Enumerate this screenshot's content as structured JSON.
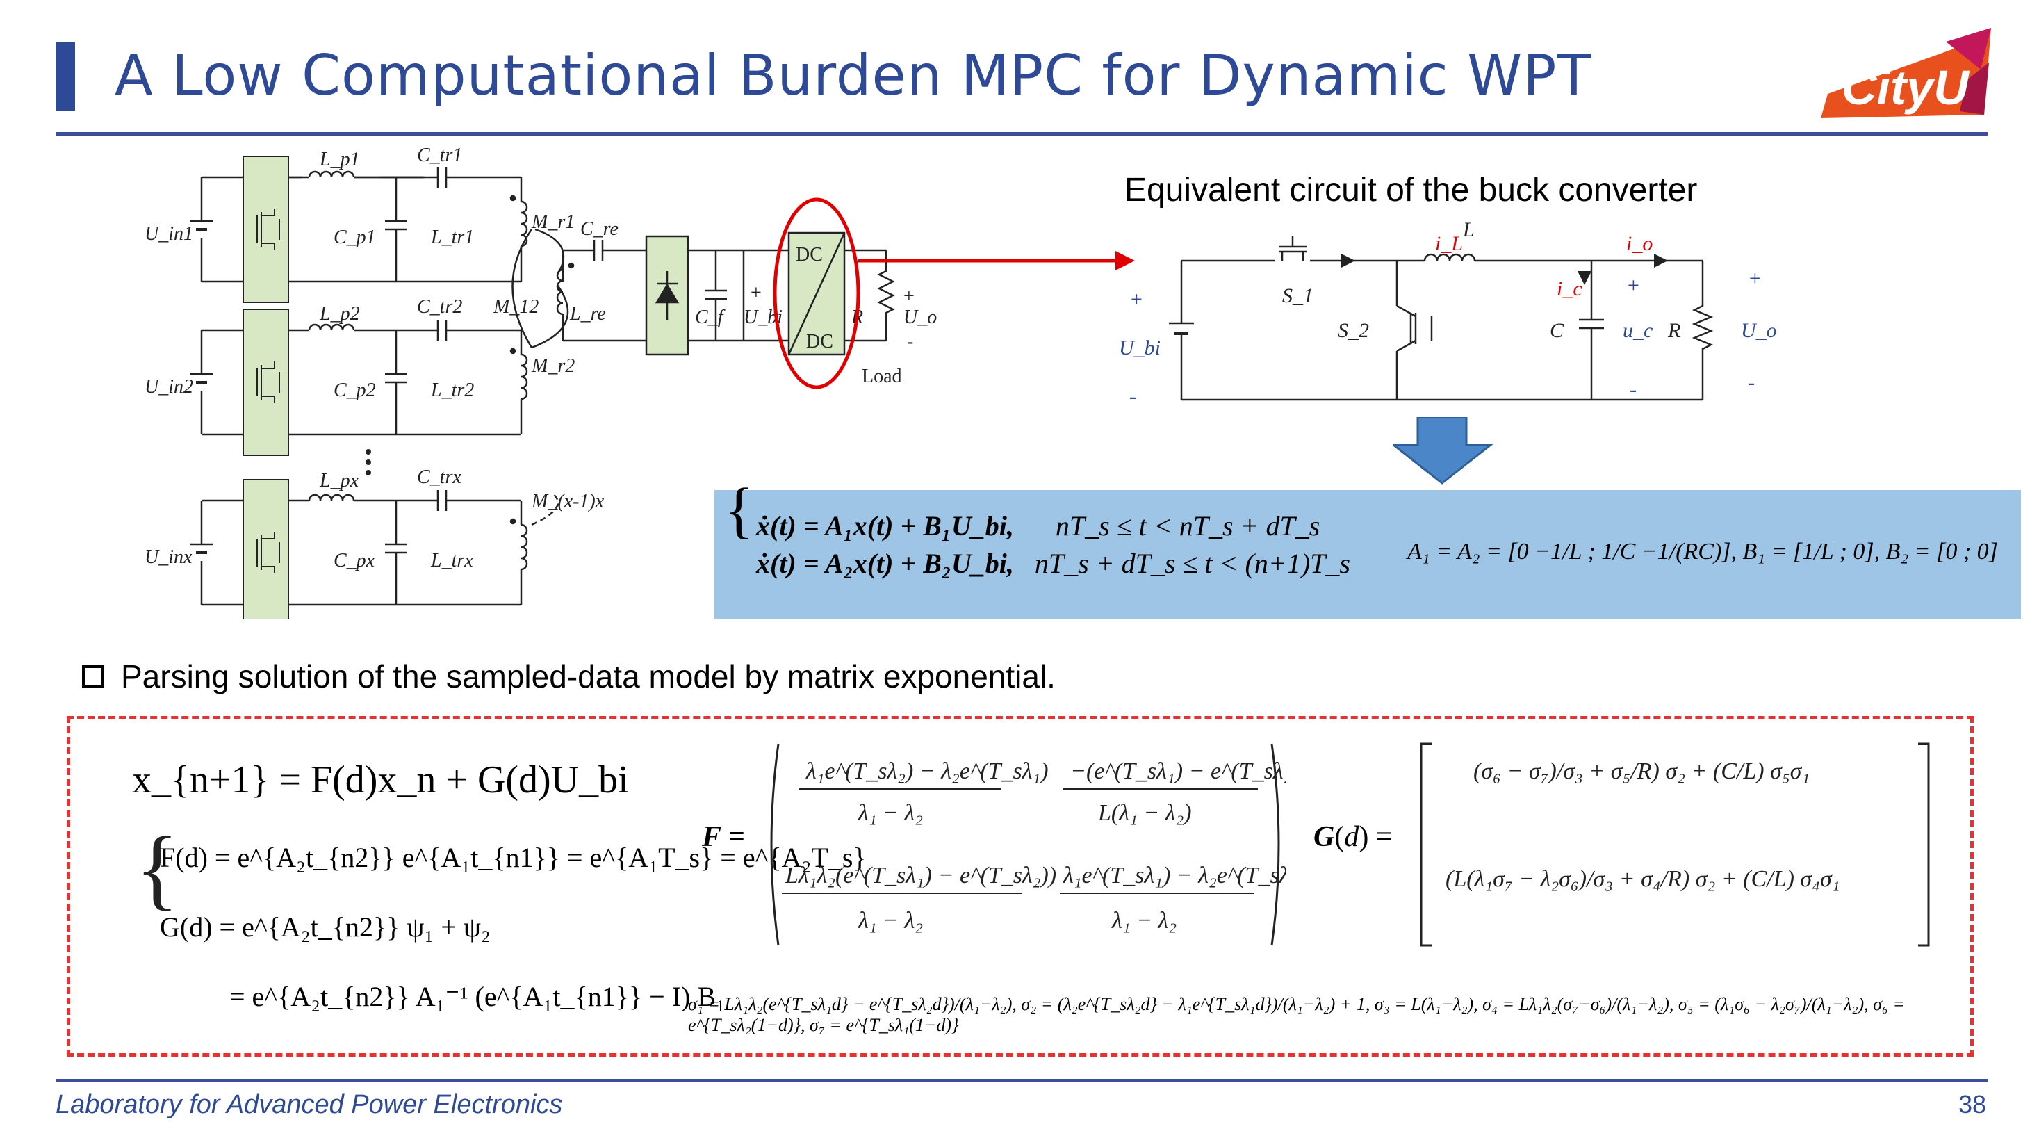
{
  "header": {
    "title": "A Low Computational Burden MPC for Dynamic WPT",
    "logo_text": "CityU"
  },
  "circuit_left": {
    "sources": [
      "U_in1",
      "U_in2",
      "U_inx"
    ],
    "labels": {
      "Lp1": "L_p1",
      "Ctr1": "C_tr1",
      "Cp1": "C_p1",
      "Ltr1": "L_tr1",
      "Lp2": "L_p2",
      "Ctr2": "C_tr2",
      "Cp2": "C_p2",
      "Ltr2": "L_tr2",
      "Lpx": "L_px",
      "Ctrx": "C_trx",
      "Cpx": "C_px",
      "Ltrx": "L_trx",
      "Mr1": "M_r1",
      "M12": "M_12",
      "Mr2": "M_r2",
      "Mx": "M_(x-1)x",
      "Cre": "C_re",
      "Lre": "L_re",
      "Cf": "C_f",
      "Ubi": "U_bi",
      "R": "R",
      "Uo": "U_o",
      "dc_top": "DC",
      "dc_bottom": "DC",
      "load": "Load"
    }
  },
  "equiv_circuit": {
    "caption": "Equivalent circuit of the buck converter",
    "labels": {
      "iL": "i_L",
      "L": "L",
      "io": "i_o",
      "ic": "i_c",
      "S1": "S_1",
      "S2": "S_2",
      "C": "C",
      "uc": "u_c",
      "R": "R",
      "Ubi": "U_bi",
      "Uo": "U_o"
    }
  },
  "state_eq": {
    "line1": "ẋ(t) = A₁x(t) + B₁U_bi,",
    "cond1": "nT_s ≤ t < nT_s + dT_s",
    "line2": "ẋ(t) = A₂x(t) + B₂U_bi,",
    "cond2": "nT_s + dT_s ≤ t < (n+1)T_s",
    "matrices": "A₁ = A₂ = [0  −1/L ; 1/C  −1/(RC)], B₁ = [1/L ; 0], B₂ = [0 ; 0]"
  },
  "bullet": {
    "text": "Parsing solution of the sampled-data model by matrix exponential."
  },
  "solution": {
    "x_next": "x_{n+1} = F(d)x_n + G(d)U_bi",
    "F_def": "F(d) = e^{A₂t_{n2}} e^{A₁t_{n1}} = e^{A₁T_s} = e^{A₂T_s}",
    "G_def": "G(d) = e^{A₂t_{n2}} ψ₁ + ψ₂",
    "G_def2": "= e^{A₂t_{n2}} A₁⁻¹ (e^{A₁t_{n1}} − I) B₁",
    "sigmas": "σ₁ = Lλ₁λ₂(e^{T_sλ₁d} − e^{T_sλ₂d})/(λ₁−λ₂), σ₂ = (λ₂e^{T_sλ₂d} − λ₁e^{T_sλ₁d})/(λ₁−λ₂) + 1, σ₃ = L(λ₁−λ₂), σ₄ = Lλ₁λ₂(σ₇−σ₆)/(λ₁−λ₂), σ₅ = (λ₁σ₆ − λ₂σ₇)/(λ₁−λ₂), σ₆ = e^{T_sλ₂(1−d)}, σ₇ = e^{T_sλ₁(1−d)}"
  },
  "footer": {
    "lab": "Laboratory for Advanced Power Electronics",
    "page": "38"
  },
  "colors": {
    "title": "#2e4a96",
    "formula_bg": "#9ec4e6",
    "dashed_border": "#e53333",
    "arrow_red": "#e00000",
    "arrow_blue": "#4a86c8",
    "mosfet_fill": "#d8e8c4"
  }
}
